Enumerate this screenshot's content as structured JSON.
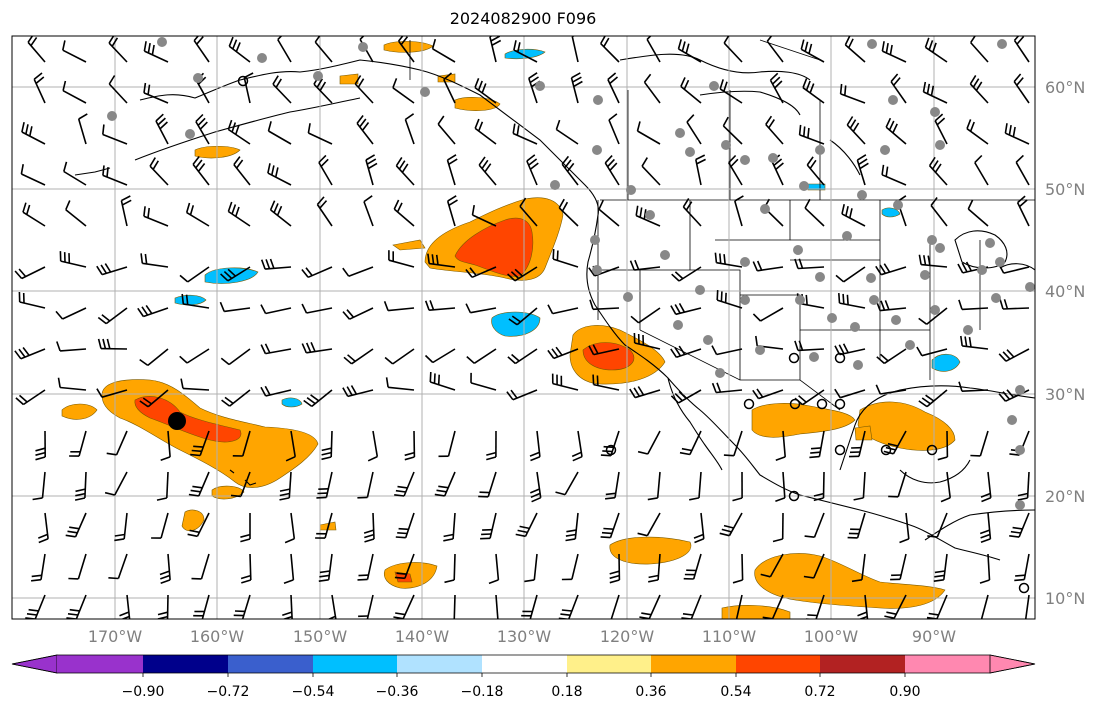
{
  "title": "2024082900 F096",
  "map": {
    "lon_labels": [
      "170°W",
      "160°W",
      "150°W",
      "140°W",
      "130°W",
      "120°W",
      "110°W",
      "100°W",
      "90°W"
    ],
    "lat_labels": [
      "60°N",
      "50°N",
      "40°N",
      "30°N",
      "20°N",
      "10°N"
    ],
    "colors": {
      "land_outline": "#000000",
      "grid": "#b0b0b0",
      "station_dot": "#888888",
      "highlight_point": "#000000"
    }
  },
  "colorbar": {
    "ticks": [
      "−0.90",
      "−0.72",
      "−0.54",
      "−0.36",
      "−0.18",
      "0.18",
      "0.36",
      "0.54",
      "0.72",
      "0.90"
    ],
    "colors": [
      "#9932cc",
      "#00008b",
      "#3a5fcd",
      "#00bfff",
      "#b0e2ff",
      "#ffffff",
      "#fff08a",
      "#ffa500",
      "#ff4500",
      "#b22222",
      "#ff88b0"
    ]
  }
}
